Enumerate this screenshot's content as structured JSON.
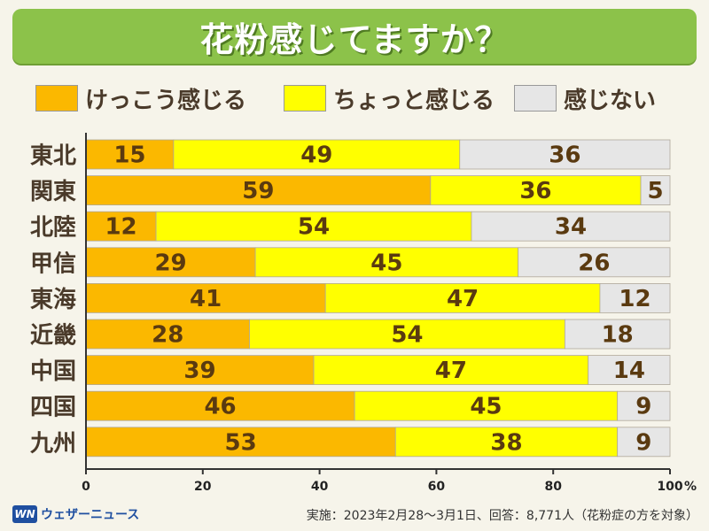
{
  "title": "花粉感じてますか？",
  "legend": {
    "items": [
      {
        "label": "けっこう感じる",
        "color": "#fbb800"
      },
      {
        "label": "ちょっと感じる",
        "color": "#ffff00"
      },
      {
        "label": "感じない",
        "color": "#e6e6e6"
      }
    ]
  },
  "chart_data": {
    "type": "bar",
    "orientation": "horizontal",
    "stacked": true,
    "categories": [
      "東北",
      "関東",
      "北陸",
      "甲信",
      "東海",
      "近畿",
      "中国",
      "四国",
      "九州"
    ],
    "series": [
      {
        "name": "けっこう感じる",
        "color": "#fbb800",
        "values": [
          15,
          59,
          12,
          29,
          41,
          28,
          39,
          46,
          53
        ]
      },
      {
        "name": "ちょっと感じる",
        "color": "#ffff00",
        "values": [
          49,
          36,
          54,
          45,
          47,
          54,
          47,
          45,
          38
        ]
      },
      {
        "name": "感じない",
        "color": "#e6e6e6",
        "values": [
          36,
          5,
          34,
          26,
          12,
          18,
          14,
          9,
          9
        ]
      }
    ],
    "xlim": [
      0,
      100
    ],
    "x_ticks": [
      "0",
      "20",
      "40",
      "60",
      "80",
      "100"
    ],
    "x_unit": "%",
    "value_label_color": "#5a3a10",
    "category_label_color": "#4a3a2a"
  },
  "footer": {
    "logo_mark": "WN",
    "logo_text": "ウェザーニュース",
    "note": "実施：2023年2月28～3月1日、回答：8,771人（花粉症の方を対象）"
  }
}
